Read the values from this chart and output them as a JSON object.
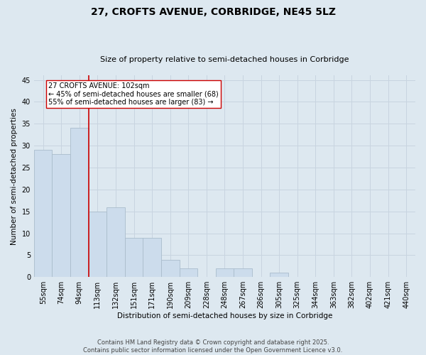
{
  "title_line1": "27, CROFTS AVENUE, CORBRIDGE, NE45 5LZ",
  "title_line2": "Size of property relative to semi-detached houses in Corbridge",
  "xlabel": "Distribution of semi-detached houses by size in Corbridge",
  "ylabel": "Number of semi-detached properties",
  "categories": [
    "55sqm",
    "74sqm",
    "94sqm",
    "113sqm",
    "132sqm",
    "151sqm",
    "171sqm",
    "190sqm",
    "209sqm",
    "228sqm",
    "248sqm",
    "267sqm",
    "286sqm",
    "305sqm",
    "325sqm",
    "344sqm",
    "363sqm",
    "382sqm",
    "402sqm",
    "421sqm",
    "440sqm"
  ],
  "values": [
    29,
    28,
    34,
    15,
    16,
    9,
    9,
    4,
    2,
    0,
    2,
    2,
    0,
    1,
    0,
    0,
    0,
    0,
    0,
    0,
    0
  ],
  "bar_color": "#ccdcec",
  "bar_edge_color": "#aabccc",
  "grid_color": "#c8d4e0",
  "background_color": "#dde8f0",
  "annotation_label": "27 CROFTS AVENUE: 102sqm",
  "annotation_line1": "← 45% of semi-detached houses are smaller (68)",
  "annotation_line2": "55% of semi-detached houses are larger (83) →",
  "ylim": [
    0,
    46
  ],
  "yticks": [
    0,
    5,
    10,
    15,
    20,
    25,
    30,
    35,
    40,
    45
  ],
  "vline_color": "#cc0000",
  "annotation_box_facecolor": "#ffffff",
  "annotation_box_edgecolor": "#cc0000",
  "footnote": "Contains HM Land Registry data © Crown copyright and database right 2025.\nContains public sector information licensed under the Open Government Licence v3.0.",
  "title1_fontsize": 10,
  "title2_fontsize": 8,
  "ylabel_fontsize": 7.5,
  "xlabel_fontsize": 7.5,
  "tick_fontsize": 7,
  "annot_fontsize": 7,
  "footnote_fontsize": 6
}
